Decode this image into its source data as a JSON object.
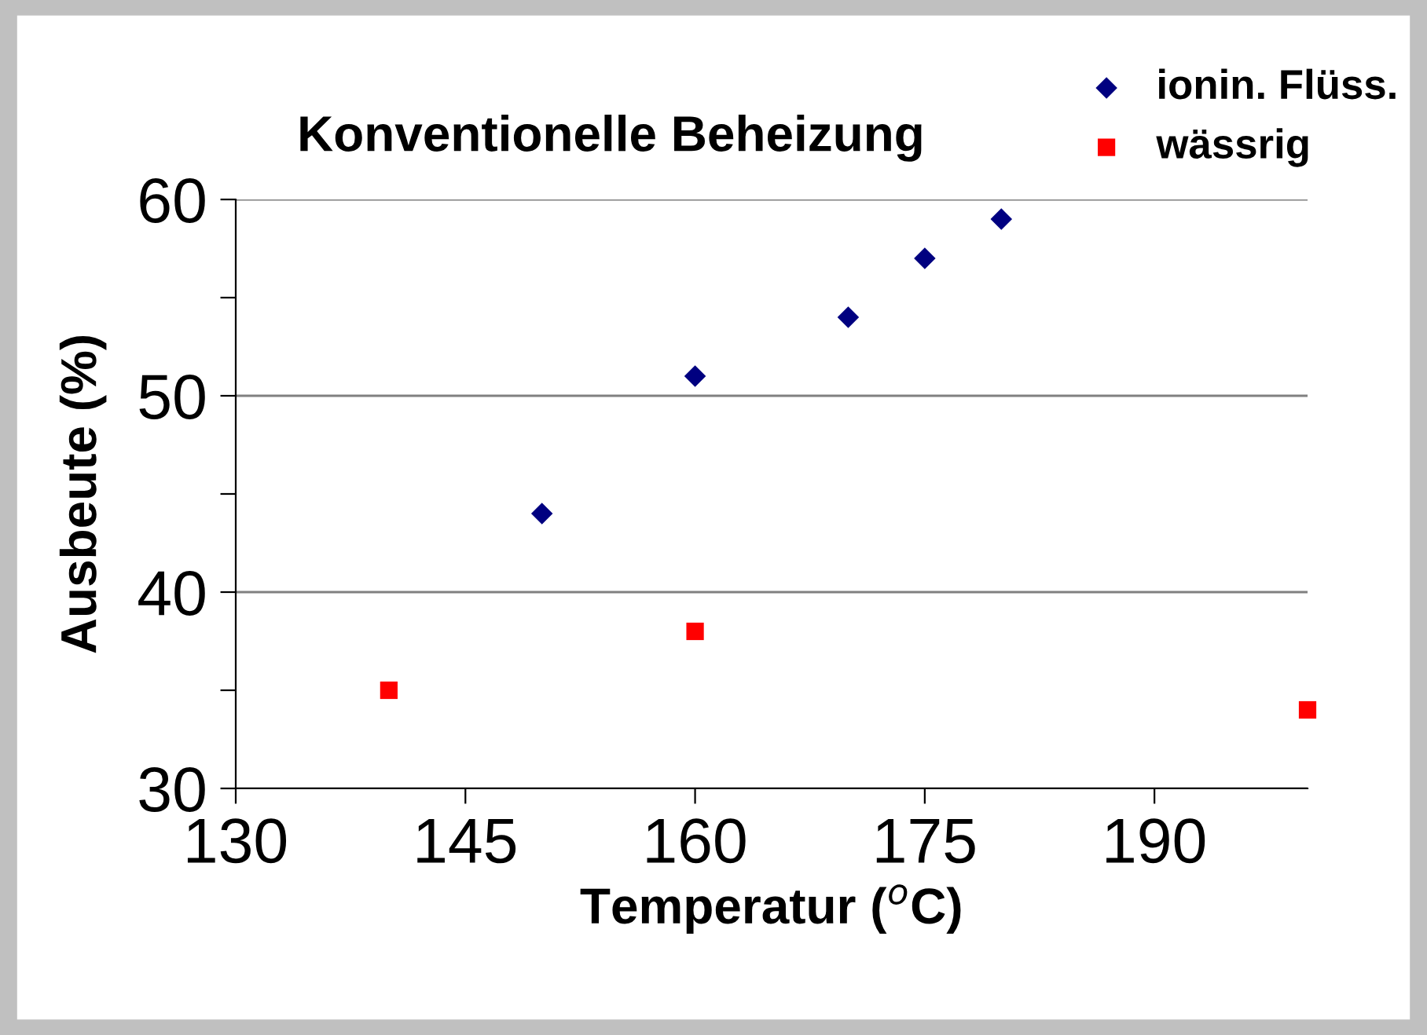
{
  "chart_data": {
    "type": "scatter",
    "title": "Konventionelle Beheizung",
    "xlabel": "Temperatur ($^{o}$C)",
    "ylabel": "Ausbeute (%)",
    "series": [
      {
        "name": "ionin. Flüss.",
        "color": "#000080",
        "marker": "diamond",
        "x": [
          150,
          160,
          170,
          175,
          180
        ],
        "values": [
          44,
          51,
          54,
          57,
          59
        ]
      },
      {
        "name": "wässrig",
        "color": "#ff0000",
        "marker": "square",
        "x": [
          140,
          160,
          200
        ],
        "values": [
          35,
          38,
          34
        ]
      }
    ],
    "xlim": [
      130,
      200
    ],
    "xticks": [
      130,
      145,
      160,
      175,
      190
    ],
    "ylim": [
      30,
      60
    ],
    "yticks": [
      30,
      {
        "value": 35,
        "label": null
      },
      40,
      {
        "value": 45,
        "label": null
      },
      50,
      {
        "value": 55,
        "label": null
      },
      60
    ],
    "grid": "y",
    "legend": "top right"
  }
}
